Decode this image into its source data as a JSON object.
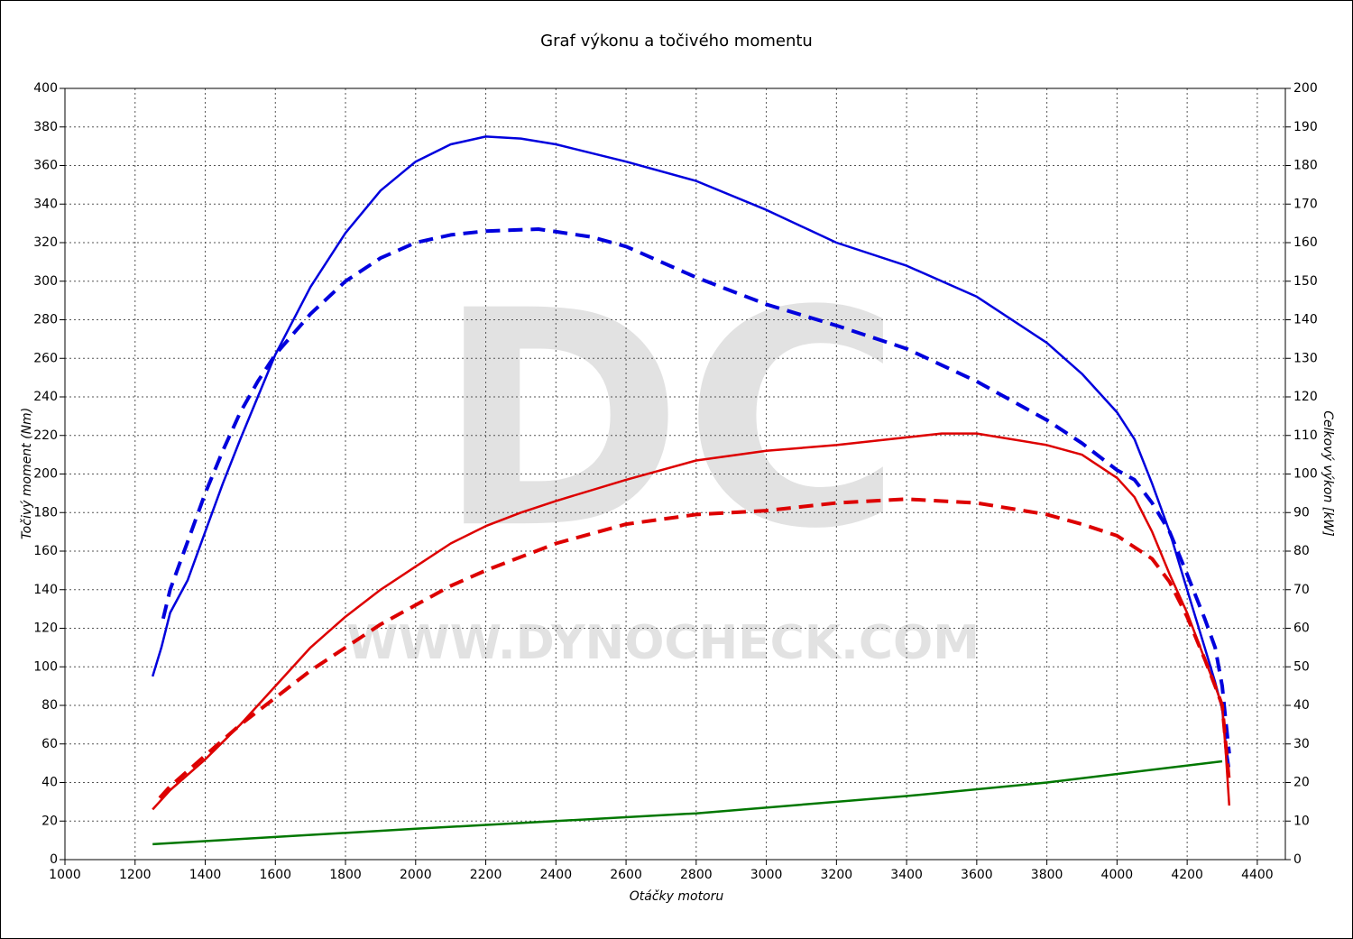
{
  "chart_data": {
    "type": "line",
    "title": "Graf výkonu a točivého momentu",
    "x_label": "Otáčky motoru",
    "y_label": "Točivý moment (Nm)",
    "y2_label": "Celkový výkon [kW]",
    "watermark": "DC",
    "watermark_url": "WWW.DYNOCHECK.COM",
    "xlim": [
      1000,
      4480
    ],
    "xticks": [
      1000,
      1200,
      1400,
      1600,
      1800,
      2000,
      2200,
      2400,
      2600,
      2800,
      3000,
      3200,
      3400,
      3600,
      3800,
      4000,
      4200,
      4400
    ],
    "ylim": [
      0,
      400
    ],
    "yticks": [
      0,
      20,
      40,
      60,
      80,
      100,
      120,
      140,
      160,
      180,
      200,
      220,
      240,
      260,
      280,
      300,
      320,
      340,
      360,
      380,
      400
    ],
    "y2lim": [
      0,
      200
    ],
    "y2ticks": [
      0,
      10,
      20,
      30,
      40,
      50,
      60,
      70,
      80,
      90,
      100,
      110,
      120,
      130,
      140,
      150,
      160,
      170,
      180,
      190,
      200
    ],
    "grid": true,
    "series": [
      {
        "color": "#0000dd",
        "dashed": false,
        "x": [
          1250,
          1275,
          1300,
          1350,
          1400,
          1450,
          1500,
          1550,
          1600,
          1700,
          1800,
          1900,
          2000,
          2100,
          2200,
          2300,
          2400,
          2600,
          2800,
          3000,
          3200,
          3400,
          3600,
          3800,
          3900,
          4000,
          4050,
          4100,
          4150,
          4200,
          4250,
          4280,
          4300,
          4310,
          4320
        ],
        "values": [
          95,
          110,
          128,
          145,
          170,
          195,
          218,
          240,
          262,
          297,
          325,
          347,
          362,
          371,
          375,
          374,
          371,
          362,
          352,
          337,
          320,
          308,
          292,
          268,
          252,
          232,
          218,
          195,
          170,
          140,
          110,
          92,
          78,
          60,
          48
        ]
      },
      {
        "color": "#0000dd",
        "dashed": true,
        "x": [
          1280,
          1300,
          1350,
          1400,
          1450,
          1500,
          1550,
          1600,
          1700,
          1800,
          1900,
          2000,
          2100,
          2200,
          2350,
          2500,
          2600,
          2800,
          3000,
          3200,
          3400,
          3600,
          3800,
          3900,
          4000,
          4050,
          4100,
          4150,
          4200,
          4250,
          4280,
          4300,
          4310,
          4320
        ],
        "values": [
          125,
          140,
          165,
          190,
          212,
          232,
          248,
          262,
          283,
          300,
          312,
          320,
          324,
          326,
          327,
          323,
          318,
          302,
          288,
          277,
          265,
          248,
          228,
          216,
          202,
          197,
          185,
          170,
          148,
          125,
          110,
          90,
          72,
          55
        ]
      },
      {
        "color": "#dd0000",
        "dashed": false,
        "axis": "y2",
        "x": [
          1250,
          1300,
          1400,
          1500,
          1600,
          1700,
          1800,
          1900,
          2000,
          2100,
          2200,
          2300,
          2400,
          2600,
          2800,
          3000,
          3200,
          3400,
          3500,
          3600,
          3800,
          3900,
          4000,
          4050,
          4100,
          4150,
          4200,
          4250,
          4280,
          4300,
          4310,
          4320
        ],
        "values": [
          13,
          18,
          26,
          35,
          45,
          55,
          63,
          70,
          76,
          82,
          86.5,
          90,
          93,
          98.5,
          103.5,
          106,
          107.5,
          109.5,
          110.5,
          110.5,
          107.5,
          105,
          99,
          94,
          85,
          74,
          64,
          52,
          45,
          40,
          28,
          14
        ]
      },
      {
        "color": "#dd0000",
        "dashed": true,
        "axis": "y2",
        "x": [
          1270,
          1300,
          1400,
          1500,
          1600,
          1700,
          1800,
          1900,
          2000,
          2100,
          2200,
          2400,
          2600,
          2800,
          3000,
          3200,
          3400,
          3600,
          3800,
          3900,
          4000,
          4100,
          4150,
          4200,
          4250,
          4280,
          4300,
          4310,
          4320
        ],
        "values": [
          16,
          19,
          27,
          35,
          42,
          49,
          55,
          61,
          66,
          71,
          75,
          82,
          87,
          89.5,
          90.5,
          92.5,
          93.5,
          92.5,
          89.5,
          87,
          84,
          78,
          72,
          63,
          52,
          45,
          40,
          30,
          20
        ]
      },
      {
        "color": "#007700",
        "dashed": false,
        "axis": "y2",
        "x": [
          1250,
          2000,
          2800,
          3400,
          3800,
          4300
        ],
        "values": [
          4,
          8,
          12,
          16.5,
          20,
          25.5
        ]
      }
    ]
  }
}
